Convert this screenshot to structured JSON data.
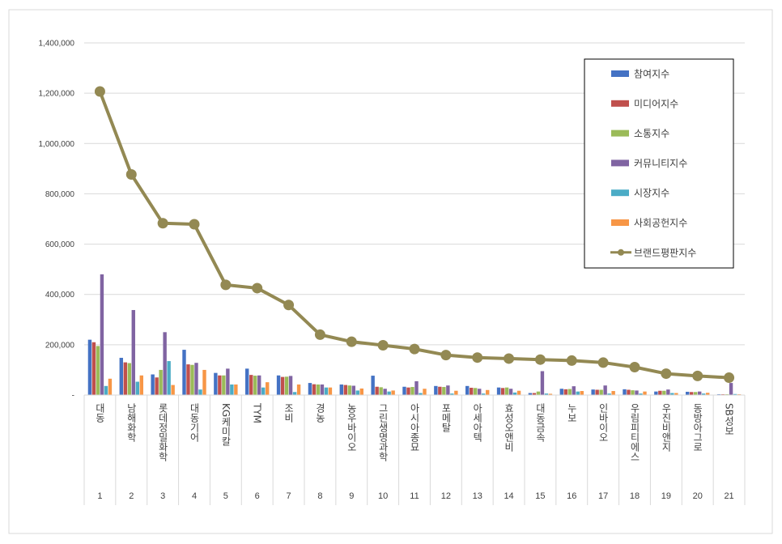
{
  "chart_data": {
    "type": "bar",
    "categories": [
      "대동",
      "남해화학",
      "롯데정밀화학",
      "대동기어",
      "KG케미칼",
      "TYM",
      "조비",
      "경농",
      "농우바이오",
      "그린생명과학",
      "아시아종묘",
      "포메탈",
      "아세아텍",
      "효성오앤비",
      "대동금속",
      "누보",
      "인바이오",
      "우림피티에스",
      "우진비앤지",
      "동방아그로",
      "SB성보"
    ],
    "ranks": [
      "1",
      "2",
      "3",
      "4",
      "5",
      "6",
      "7",
      "8",
      "9",
      "10",
      "11",
      "12",
      "13",
      "14",
      "15",
      "16",
      "17",
      "18",
      "19",
      "20",
      "21"
    ],
    "ylim": [
      0,
      1400000
    ],
    "yticks": [
      "-",
      "200,000",
      "400,000",
      "600,000",
      "800,000",
      "1,000,000",
      "1,200,000",
      "1,400,000"
    ],
    "legend_position": "top-right",
    "series": [
      {
        "name": "참여지수",
        "type": "bar",
        "color": "#4472c4",
        "values": [
          220000,
          148000,
          82000,
          180000,
          88000,
          105000,
          78000,
          48000,
          42000,
          77000,
          33000,
          36000,
          36000,
          30000,
          8000,
          25000,
          22000,
          23000,
          14000,
          13000,
          3000
        ]
      },
      {
        "name": "미디어지수",
        "type": "bar",
        "color": "#c0504d",
        "values": [
          210000,
          130000,
          70000,
          122000,
          78000,
          80000,
          72000,
          43000,
          40000,
          33000,
          30000,
          33000,
          29000,
          28000,
          8000,
          23000,
          21000,
          21000,
          17000,
          12000,
          3000
        ]
      },
      {
        "name": "소통지수",
        "type": "bar",
        "color": "#9bbb59",
        "values": [
          195000,
          127000,
          100000,
          120000,
          78000,
          77000,
          73000,
          42000,
          38000,
          31000,
          32000,
          32000,
          28000,
          30000,
          14000,
          24000,
          21000,
          19000,
          17000,
          12000,
          3000
        ]
      },
      {
        "name": "커뮤니티지수",
        "type": "bar",
        "color": "#8064a2",
        "values": [
          480000,
          338000,
          250000,
          128000,
          105000,
          78000,
          76000,
          42000,
          37000,
          25000,
          55000,
          38000,
          25000,
          25000,
          95000,
          35000,
          38000,
          18000,
          22000,
          14000,
          48000
        ]
      },
      {
        "name": "시장지수",
        "type": "bar",
        "color": "#4bacc6",
        "values": [
          36000,
          53000,
          135000,
          22000,
          42000,
          30000,
          12000,
          30000,
          18000,
          14000,
          8000,
          6000,
          6000,
          10000,
          6000,
          14000,
          6000,
          6000,
          8000,
          6000,
          4000
        ]
      },
      {
        "name": "사회공헌지수",
        "type": "bar",
        "color": "#f79646",
        "values": [
          65000,
          78000,
          40000,
          100000,
          42000,
          51000,
          42000,
          30000,
          26000,
          18000,
          25000,
          17000,
          20000,
          17000,
          5000,
          16000,
          16000,
          14000,
          8000,
          9000,
          3000
        ]
      },
      {
        "name": "브랜드평판지수",
        "type": "line",
        "color": "#938953",
        "values": [
          1207000,
          877000,
          683000,
          679000,
          438000,
          425000,
          358000,
          240000,
          212000,
          198000,
          183000,
          159000,
          149000,
          145000,
          141000,
          137000,
          129000,
          111000,
          85000,
          76000,
          69000
        ]
      }
    ]
  }
}
